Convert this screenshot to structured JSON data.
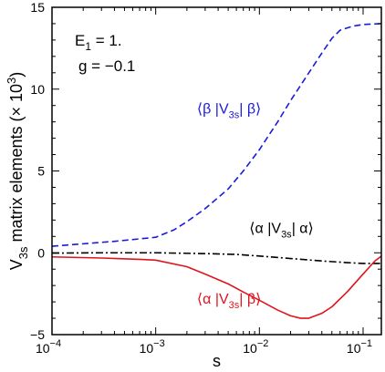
{
  "chart_data": {
    "type": "line",
    "xlabel": "s",
    "ylabel": "V_3s matrix elements (× 10^3)",
    "x_scale": "log",
    "xlim": [
      0.0001,
      0.15
    ],
    "ylim": [
      -5,
      15
    ],
    "grid": false,
    "x_ticks": [
      {
        "value": 0.0001,
        "base": "10",
        "exp": "−4"
      },
      {
        "value": 0.001,
        "base": "10",
        "exp": "−3"
      },
      {
        "value": 0.01,
        "base": "10",
        "exp": "−2"
      },
      {
        "value": 0.1,
        "base": "10",
        "exp": "−1"
      }
    ],
    "y_ticks": [
      -5,
      0,
      5,
      10,
      15
    ],
    "annotations": [
      {
        "text": "E",
        "sub": "1",
        "rest": " = 1."
      },
      {
        "text": "g = −0.1"
      }
    ],
    "series": [
      {
        "label": {
          "open": "⟨β |V",
          "sub": "3s",
          "close": "| β⟩"
        },
        "color": "#1a1adf",
        "dash": "dashed",
        "label_at": {
          "x": 0.0025,
          "y": 8.5
        },
        "points": [
          [
            0.0001,
            0.4
          ],
          [
            0.0002,
            0.55
          ],
          [
            0.0004,
            0.7
          ],
          [
            0.0007,
            0.85
          ],
          [
            0.001,
            0.95
          ],
          [
            0.0015,
            1.4
          ],
          [
            0.002,
            1.9
          ],
          [
            0.003,
            2.7
          ],
          [
            0.005,
            3.9
          ],
          [
            0.007,
            5.0
          ],
          [
            0.01,
            6.3
          ],
          [
            0.015,
            8.0
          ],
          [
            0.02,
            9.3
          ],
          [
            0.03,
            11.0
          ],
          [
            0.04,
            12.2
          ],
          [
            0.05,
            13.1
          ],
          [
            0.06,
            13.6
          ],
          [
            0.08,
            13.85
          ],
          [
            0.1,
            13.95
          ],
          [
            0.15,
            14.0
          ]
        ]
      },
      {
        "label": {
          "open": "⟨α |V",
          "sub": "3s",
          "close": "| α⟩"
        },
        "color": "#000000",
        "dash": "dashdot",
        "label_at": {
          "x": 0.008,
          "y": 1.2
        },
        "points": [
          [
            0.0001,
            -0.02
          ],
          [
            0.0003,
            0.0
          ],
          [
            0.001,
            0.0
          ],
          [
            0.003,
            -0.05
          ],
          [
            0.006,
            -0.1
          ],
          [
            0.01,
            -0.2
          ],
          [
            0.02,
            -0.35
          ],
          [
            0.04,
            -0.5
          ],
          [
            0.07,
            -0.6
          ],
          [
            0.1,
            -0.65
          ],
          [
            0.15,
            -0.65
          ]
        ]
      },
      {
        "label": {
          "open": "⟨α |V",
          "sub": "3s",
          "close": "| β⟩"
        },
        "color": "#e0141e",
        "dash": "solid",
        "label_at": {
          "x": 0.0025,
          "y": -3.1
        },
        "points": [
          [
            0.0001,
            -0.25
          ],
          [
            0.0003,
            -0.32
          ],
          [
            0.0007,
            -0.4
          ],
          [
            0.001,
            -0.45
          ],
          [
            0.002,
            -0.85
          ],
          [
            0.003,
            -1.3
          ],
          [
            0.005,
            -1.9
          ],
          [
            0.007,
            -2.4
          ],
          [
            0.01,
            -2.9
          ],
          [
            0.015,
            -3.5
          ],
          [
            0.02,
            -3.85
          ],
          [
            0.025,
            -4.0
          ],
          [
            0.03,
            -4.0
          ],
          [
            0.04,
            -3.7
          ],
          [
            0.05,
            -3.3
          ],
          [
            0.07,
            -2.4
          ],
          [
            0.1,
            -1.3
          ],
          [
            0.13,
            -0.5
          ],
          [
            0.15,
            -0.2
          ]
        ]
      }
    ]
  }
}
